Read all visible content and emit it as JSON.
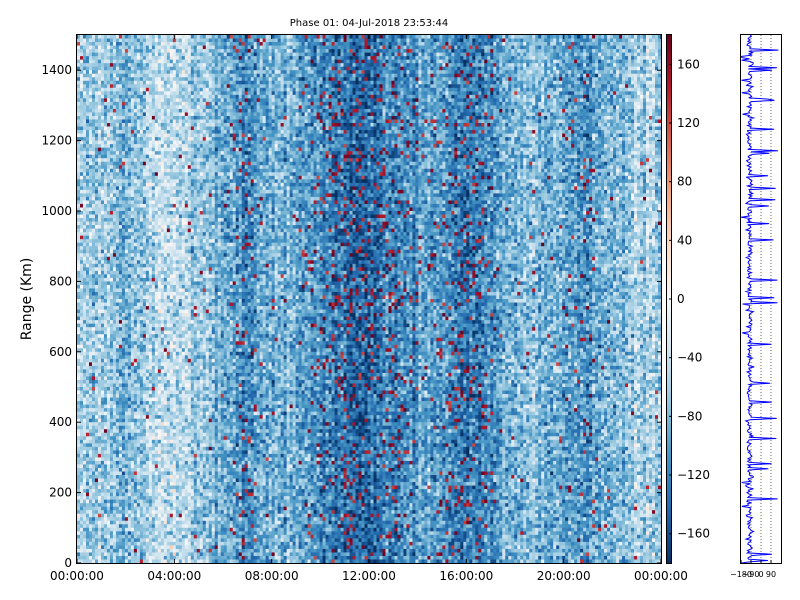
{
  "chart_data": [
    {
      "type": "heatmap",
      "title": "Phase 01: 04-Jul-2018 23:53:44",
      "xlabel": "",
      "ylabel": "Range (Km)",
      "x_ticks": [
        "00:00:00",
        "04:00:00",
        "08:00:00",
        "12:00:00",
        "16:00:00",
        "20:00:00",
        "00:00:00"
      ],
      "y_ticks": [
        0,
        200,
        400,
        600,
        800,
        1000,
        1200,
        1400
      ],
      "ylim": [
        0,
        1500
      ],
      "xlim_hours": [
        0,
        24
      ],
      "colorbar": {
        "range": [
          -180,
          180
        ],
        "ticks": [
          160,
          120,
          80,
          40,
          0,
          -40,
          -80,
          -120,
          -160
        ],
        "tick_labels": [
          "160",
          "120",
          "80",
          "40",
          "0",
          "−40",
          "−80",
          "−120",
          "−160"
        ],
        "colormap": "RdBu_r"
      },
      "grid": false,
      "column_profile_mean_phase": [
        -60,
        -70,
        -55,
        -85,
        -75,
        -50,
        -45,
        -55,
        -65,
        -80,
        -95,
        -110,
        -105,
        -85,
        -80,
        -95,
        -110,
        -125,
        -135,
        -135,
        -130,
        -120,
        -110,
        -95,
        -105,
        -120,
        -130,
        -120,
        -95,
        -85,
        -75,
        -85,
        -90,
        -105,
        -110,
        -90,
        -75,
        -65,
        -60,
        -55
      ]
    },
    {
      "type": "line",
      "description_axis": "phase vs range profile",
      "x_ticks": [
        "−180",
        "−90",
        "0",
        "90"
      ],
      "xlim": [
        -180,
        180
      ],
      "ylim": [
        0,
        1500
      ],
      "grid": true,
      "line_color": "#0000ff"
    }
  ]
}
